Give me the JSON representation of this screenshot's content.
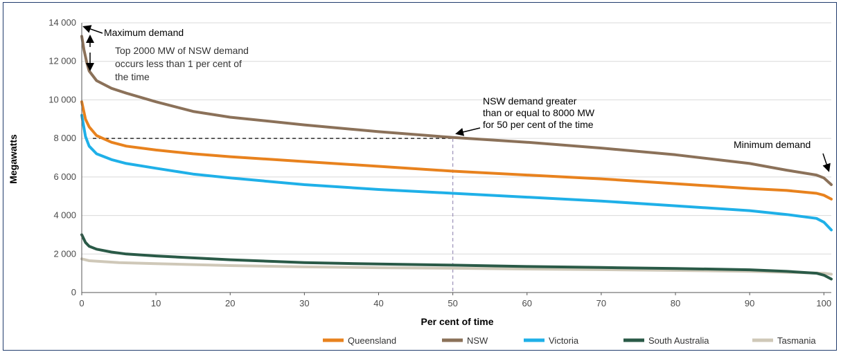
{
  "chart_data": {
    "type": "line",
    "title": "",
    "xlabel": "Per cent of time",
    "ylabel": "Megawatts",
    "xlim": [
      0,
      101
    ],
    "ylim": [
      0,
      14000
    ],
    "x_ticks": [
      0,
      10,
      20,
      30,
      40,
      50,
      60,
      70,
      80,
      90,
      100
    ],
    "y_ticks": [
      0,
      2000,
      4000,
      6000,
      8000,
      10000,
      12000,
      14000
    ],
    "y_tick_labels": [
      "0",
      "2 000",
      "4 000",
      "6 000",
      "8 000",
      "10 000",
      "12 000",
      "14 000"
    ],
    "grid": "horizontal",
    "legend_position": "bottom",
    "series": [
      {
        "name": "Queensland",
        "color": "#e8821e",
        "x": [
          0,
          0.5,
          1,
          2,
          4,
          6,
          10,
          15,
          20,
          30,
          40,
          50,
          60,
          70,
          80,
          90,
          95,
          99,
          100,
          101
        ],
        "y": [
          9900,
          9000,
          8600,
          8150,
          7800,
          7600,
          7400,
          7200,
          7050,
          6800,
          6550,
          6300,
          6100,
          5900,
          5650,
          5400,
          5300,
          5150,
          5050,
          4850
        ]
      },
      {
        "name": "NSW",
        "color": "#8b7159",
        "x": [
          0,
          0.3,
          0.7,
          1,
          2,
          4,
          6,
          10,
          15,
          20,
          30,
          40,
          50,
          60,
          70,
          80,
          90,
          95,
          99,
          100,
          101
        ],
        "y": [
          13300,
          12600,
          11900,
          11500,
          11000,
          10600,
          10350,
          9900,
          9400,
          9100,
          8700,
          8350,
          8050,
          7800,
          7500,
          7150,
          6700,
          6350,
          6100,
          5950,
          5600
        ]
      },
      {
        "name": "Victoria",
        "color": "#1fb0e8",
        "x": [
          0,
          0.5,
          1,
          2,
          4,
          6,
          10,
          15,
          20,
          30,
          40,
          50,
          60,
          70,
          80,
          90,
          95,
          99,
          100,
          101
        ],
        "y": [
          9200,
          8100,
          7600,
          7200,
          6900,
          6700,
          6450,
          6150,
          5950,
          5600,
          5350,
          5150,
          4950,
          4750,
          4500,
          4250,
          4050,
          3850,
          3650,
          3250
        ]
      },
      {
        "name": "South Australia",
        "color": "#2a5a47",
        "x": [
          0,
          0.5,
          1,
          2,
          4,
          6,
          10,
          20,
          30,
          40,
          50,
          60,
          70,
          80,
          90,
          95,
          99,
          100,
          101
        ],
        "y": [
          3000,
          2600,
          2400,
          2250,
          2100,
          2000,
          1900,
          1700,
          1550,
          1480,
          1420,
          1350,
          1300,
          1250,
          1180,
          1100,
          1000,
          900,
          700
        ]
      },
      {
        "name": "Tasmania",
        "color": "#cfc8b8",
        "x": [
          0,
          1,
          5,
          10,
          20,
          30,
          40,
          50,
          60,
          70,
          80,
          90,
          100,
          101
        ],
        "y": [
          1750,
          1650,
          1550,
          1500,
          1400,
          1330,
          1290,
          1260,
          1220,
          1190,
          1150,
          1100,
          1000,
          950
        ]
      }
    ],
    "annotations": {
      "max_demand": "Maximum demand",
      "top_2000_lines": [
        "Top 2000 MW of NSW demand",
        "occurs less than 1 per cent of",
        "the time"
      ],
      "nsw_8000_lines": [
        "NSW demand greater",
        "than or equal to 8000 MW",
        "for 50 per cent of the time"
      ],
      "min_demand": "Minimum demand"
    },
    "reference_lines": {
      "y_value": 8000,
      "x_value": 50
    }
  }
}
